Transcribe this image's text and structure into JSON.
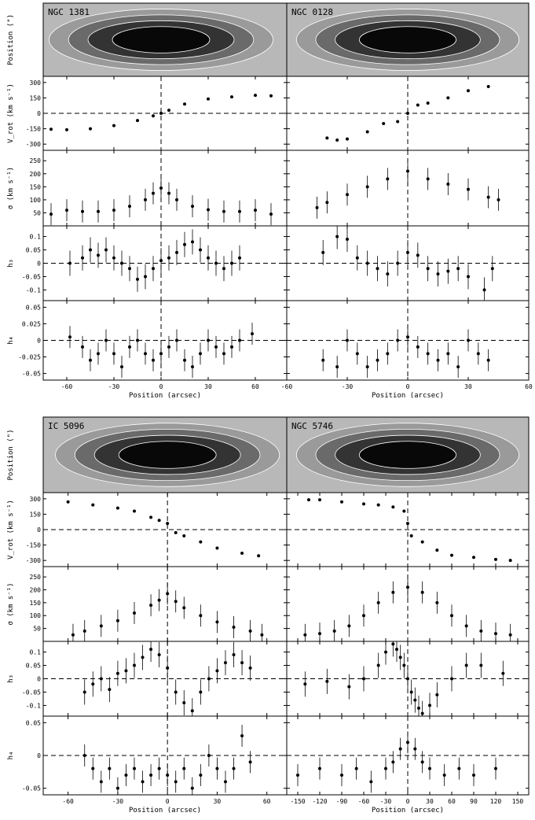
{
  "figure": {
    "x_axis_title": "Position (arcsec)",
    "panels": {
      "image": {
        "ylabel": "Position (\")",
        "yticks": []
      },
      "v": {
        "ylabel": "V_rot (km s⁻¹)",
        "yticks": [
          300,
          150,
          0,
          -150,
          -300
        ],
        "ylim": [
          -360,
          360
        ]
      },
      "sigma": {
        "ylabel": "σ (km s⁻¹)",
        "yticks": [
          250,
          200,
          150,
          100,
          50
        ],
        "ylim": [
          0,
          290
        ]
      },
      "h3": {
        "ylabel": "h₃",
        "yticks": [
          "0.1",
          "0.05",
          "0",
          "-0.05",
          "-0.1"
        ],
        "ylim": [
          -0.14,
          0.14
        ]
      },
      "h4": {
        "ylabel": "h₄",
        "yticks": [
          "0.05",
          "0.025",
          "0",
          "-0.025",
          "-0.05"
        ],
        "ylim": [
          -0.06,
          0.06
        ]
      }
    },
    "h4_ticks_bottom_row": [
      "0.05",
      "0",
      "-0.05"
    ]
  },
  "chart_data": [
    {
      "type": "scatter",
      "galaxy": "NGC 1381",
      "xlim": [
        -75,
        80
      ],
      "xticks": [
        "-60",
        "-30",
        "0",
        "30",
        "60"
      ],
      "v_data": {
        "x": [
          -70,
          -60,
          -45,
          -30,
          -15,
          -5,
          0,
          5,
          15,
          30,
          45,
          60,
          70
        ],
        "y": [
          -155,
          -160,
          -150,
          -120,
          -70,
          -25,
          0,
          30,
          90,
          140,
          160,
          175,
          170
        ]
      },
      "sigma_data": {
        "x": [
          -70,
          -60,
          -50,
          -40,
          -30,
          -20,
          -10,
          -5,
          0,
          5,
          10,
          20,
          30,
          40,
          50,
          60,
          70
        ],
        "y": [
          45,
          60,
          55,
          55,
          60,
          75,
          100,
          125,
          145,
          125,
          100,
          75,
          62,
          55,
          55,
          60,
          45
        ]
      },
      "h3_data": {
        "x": [
          -58,
          -50,
          -45,
          -40,
          -35,
          -30,
          -25,
          -20,
          -15,
          -10,
          -5,
          0,
          5,
          10,
          15,
          20,
          25,
          30,
          35,
          40,
          45,
          50
        ],
        "y": [
          0.0,
          0.02,
          0.05,
          0.03,
          0.05,
          0.02,
          0.0,
          -0.02,
          -0.06,
          -0.05,
          -0.02,
          0.01,
          0.02,
          0.04,
          0.07,
          0.08,
          0.05,
          0.02,
          0.0,
          -0.02,
          0.0,
          0.02
        ]
      },
      "h4_data": {
        "x": [
          -58,
          -50,
          -45,
          -40,
          -35,
          -30,
          -25,
          -20,
          -15,
          -10,
          -5,
          0,
          5,
          10,
          15,
          20,
          25,
          30,
          35,
          40,
          45,
          50,
          58
        ],
        "y": [
          0.005,
          -0.01,
          -0.03,
          -0.02,
          0.0,
          -0.02,
          -0.04,
          -0.01,
          0.0,
          -0.02,
          -0.03,
          -0.02,
          -0.01,
          0.0,
          -0.03,
          -0.04,
          -0.02,
          0.0,
          -0.01,
          -0.02,
          -0.01,
          0.0,
          0.01
        ]
      }
    },
    {
      "type": "scatter",
      "galaxy": "NGC 0128",
      "xlim": [
        -60,
        60
      ],
      "xticks": [
        "-60",
        "-30",
        "0",
        "30",
        "60"
      ],
      "v_data": {
        "x": [
          -40,
          -35,
          -30,
          -20,
          -12,
          -5,
          0,
          5,
          10,
          20,
          30,
          40
        ],
        "y": [
          -240,
          -260,
          -250,
          -180,
          -100,
          -80,
          0,
          80,
          100,
          150,
          220,
          260
        ]
      },
      "sigma_data": {
        "x": [
          -45,
          -40,
          -30,
          -20,
          -10,
          0,
          10,
          20,
          30,
          40,
          45
        ],
        "y": [
          70,
          90,
          120,
          150,
          180,
          210,
          180,
          160,
          140,
          110,
          100
        ]
      },
      "h3_data": {
        "x": [
          -42,
          -35,
          -30,
          -25,
          -20,
          -15,
          -10,
          -5,
          0,
          5,
          10,
          15,
          20,
          25,
          30,
          38,
          42
        ],
        "y": [
          0.04,
          0.1,
          0.09,
          0.02,
          0.0,
          -0.02,
          -0.04,
          0.0,
          0.04,
          0.03,
          -0.02,
          -0.04,
          -0.03,
          -0.02,
          -0.05,
          -0.1,
          -0.02
        ]
      },
      "h4_data": {
        "x": [
          -42,
          -35,
          -30,
          -25,
          -20,
          -15,
          -10,
          -5,
          0,
          5,
          10,
          15,
          20,
          25,
          30,
          35,
          40
        ],
        "y": [
          -0.03,
          -0.04,
          0.0,
          -0.02,
          -0.04,
          -0.03,
          -0.02,
          0.0,
          0.005,
          -0.01,
          -0.02,
          -0.03,
          -0.02,
          -0.04,
          0.0,
          -0.02,
          -0.03
        ]
      }
    },
    {
      "type": "scatter",
      "galaxy": "IC 5096",
      "xlim": [
        -75,
        72
      ],
      "xticks": [
        "-60",
        "-30",
        "0",
        "30",
        "60"
      ],
      "v_data": {
        "x": [
          -60,
          -45,
          -30,
          -20,
          -10,
          -5,
          0,
          5,
          10,
          20,
          30,
          45,
          55
        ],
        "y": [
          270,
          240,
          210,
          180,
          120,
          90,
          60,
          -30,
          -60,
          -120,
          -180,
          -230,
          -255
        ]
      },
      "sigma_data": {
        "x": [
          -57,
          -50,
          -40,
          -30,
          -20,
          -10,
          -5,
          0,
          5,
          10,
          20,
          30,
          40,
          50,
          57
        ],
        "y": [
          25,
          40,
          60,
          80,
          110,
          140,
          160,
          185,
          155,
          130,
          100,
          75,
          55,
          40,
          25
        ]
      },
      "h3_data": {
        "x": [
          -50,
          -45,
          -40,
          -35,
          -30,
          -25,
          -20,
          -15,
          -10,
          -5,
          0,
          5,
          10,
          15,
          20,
          25,
          30,
          35,
          40,
          45,
          50
        ],
        "y": [
          -0.05,
          -0.02,
          0.0,
          -0.04,
          0.02,
          0.03,
          0.05,
          0.08,
          0.11,
          0.09,
          0.04,
          -0.05,
          -0.09,
          -0.12,
          -0.05,
          0.0,
          0.03,
          0.06,
          0.09,
          0.06,
          0.04
        ]
      },
      "h4_data": {
        "x": [
          -50,
          -45,
          -40,
          -35,
          -30,
          -25,
          -20,
          -15,
          -10,
          -5,
          0,
          5,
          10,
          15,
          20,
          25,
          30,
          35,
          40,
          45,
          50
        ],
        "y": [
          0.0,
          -0.02,
          -0.04,
          -0.02,
          -0.05,
          -0.03,
          -0.02,
          -0.04,
          -0.03,
          -0.02,
          -0.03,
          -0.04,
          -0.02,
          -0.05,
          -0.03,
          0.0,
          -0.02,
          -0.04,
          -0.02,
          0.03,
          -0.01
        ]
      }
    },
    {
      "type": "scatter",
      "galaxy": "NGC 5746",
      "xlim": [
        -165,
        165
      ],
      "xticks": [
        "-150",
        "-120",
        "-90",
        "-60",
        "-30",
        "0",
        "30",
        "60",
        "90",
        "120",
        "150"
      ],
      "v_data": {
        "x": [
          -135,
          -120,
          -90,
          -60,
          -40,
          -20,
          -5,
          0,
          5,
          20,
          40,
          60,
          90,
          120,
          140
        ],
        "y": [
          290,
          290,
          270,
          250,
          240,
          220,
          180,
          60,
          -60,
          -120,
          -200,
          -250,
          -270,
          -290,
          -300
        ]
      },
      "sigma_data": {
        "x": [
          -140,
          -120,
          -100,
          -80,
          -60,
          -40,
          -20,
          0,
          20,
          40,
          60,
          80,
          100,
          120,
          140
        ],
        "y": [
          25,
          30,
          40,
          60,
          100,
          150,
          190,
          210,
          190,
          150,
          100,
          60,
          40,
          30,
          25
        ]
      },
      "h3_data": {
        "x": [
          -140,
          -110,
          -80,
          -60,
          -40,
          -30,
          -20,
          -15,
          -10,
          -5,
          0,
          5,
          10,
          15,
          20,
          30,
          40,
          60,
          80,
          100,
          130
        ],
        "y": [
          -0.02,
          -0.01,
          -0.03,
          0.0,
          0.05,
          0.1,
          0.13,
          0.11,
          0.08,
          0.05,
          0.0,
          -0.05,
          -0.08,
          -0.11,
          -0.13,
          -0.1,
          -0.06,
          0.0,
          0.05,
          0.05,
          0.02
        ]
      },
      "h4_data": {
        "x": [
          -150,
          -120,
          -90,
          -70,
          -50,
          -30,
          -20,
          -10,
          0,
          10,
          20,
          30,
          50,
          70,
          90,
          120
        ],
        "y": [
          -0.03,
          -0.02,
          -0.03,
          -0.02,
          -0.04,
          -0.02,
          -0.01,
          0.01,
          0.02,
          0.01,
          -0.01,
          -0.02,
          -0.03,
          -0.02,
          -0.03,
          -0.02
        ]
      }
    }
  ]
}
